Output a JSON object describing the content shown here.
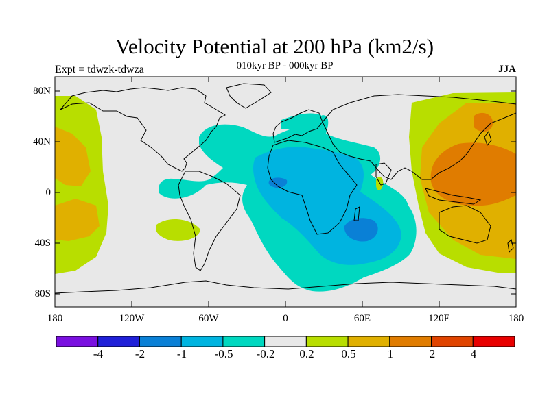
{
  "title": "Velocity Potential at 200 hPa (km2/s)",
  "subtitle": "010kyr BP - 000kyr BP",
  "left_label": "Expt = tdwzk-tdwza",
  "right_label": "JJA",
  "axes": {
    "y_ticks": [
      "80N",
      "40N",
      "0",
      "40S",
      "80S"
    ],
    "x_ticks": [
      "180",
      "120W",
      "60W",
      "0",
      "60E",
      "120E",
      "180"
    ]
  },
  "colorbar": {
    "labels": [
      "-4",
      "-2",
      "-1",
      "-0.5",
      "-0.2",
      "0.2",
      "0.5",
      "1",
      "2",
      "4"
    ],
    "colors": [
      "#7a10e0",
      "#2020d8",
      "#0a80d6",
      "#00b4e0",
      "#00d8c0",
      "#e8e8e8",
      "#b8de00",
      "#e0b000",
      "#e07c00",
      "#e04400",
      "#e80000"
    ]
  },
  "colors": {
    "ocean_background": "#e8e8e8",
    "coastline": "#000000"
  }
}
